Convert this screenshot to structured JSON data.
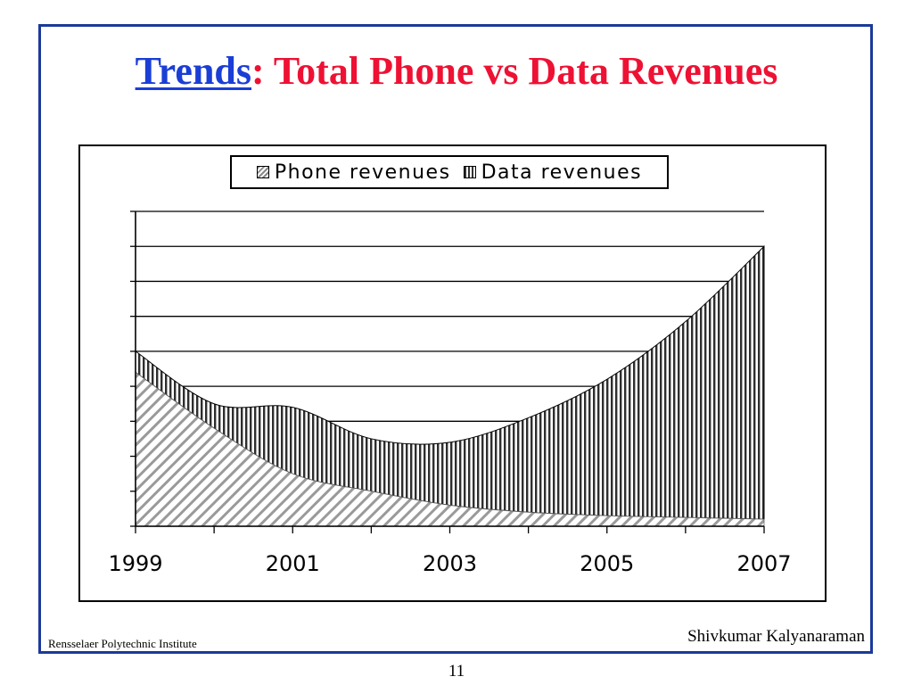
{
  "slide": {
    "title_link": "Trends",
    "title_sep": ":",
    "title_rest": " Total Phone vs Data Revenues",
    "footer_left": "Rensselaer Polytechnic Institute",
    "footer_right": "Shivkumar Kalyanaraman",
    "page_number": "11"
  },
  "colors": {
    "frame": "#1b3a9a",
    "title_link": "#1a3ed6",
    "title_text": "#ee1133",
    "phone_hatch": "#8a8a8a",
    "data_hatch": "#333333"
  },
  "chart_data": {
    "type": "area",
    "stacked": true,
    "x": [
      1999,
      2000,
      2001,
      2002,
      2003,
      2004,
      2005,
      2006,
      2007
    ],
    "xticks": [
      "1999",
      "2001",
      "2003",
      "2005",
      "2007"
    ],
    "ylim": [
      0,
      9
    ],
    "grid": true,
    "legend_position": "top-center",
    "series": [
      {
        "name": "Phone revenues",
        "values": [
          4.4,
          2.8,
          1.5,
          1.0,
          0.6,
          0.4,
          0.3,
          0.25,
          0.2
        ]
      },
      {
        "name": "Data revenues",
        "values": [
          0.6,
          0.7,
          1.9,
          1.5,
          1.8,
          2.7,
          3.9,
          5.6,
          7.8
        ]
      }
    ]
  }
}
